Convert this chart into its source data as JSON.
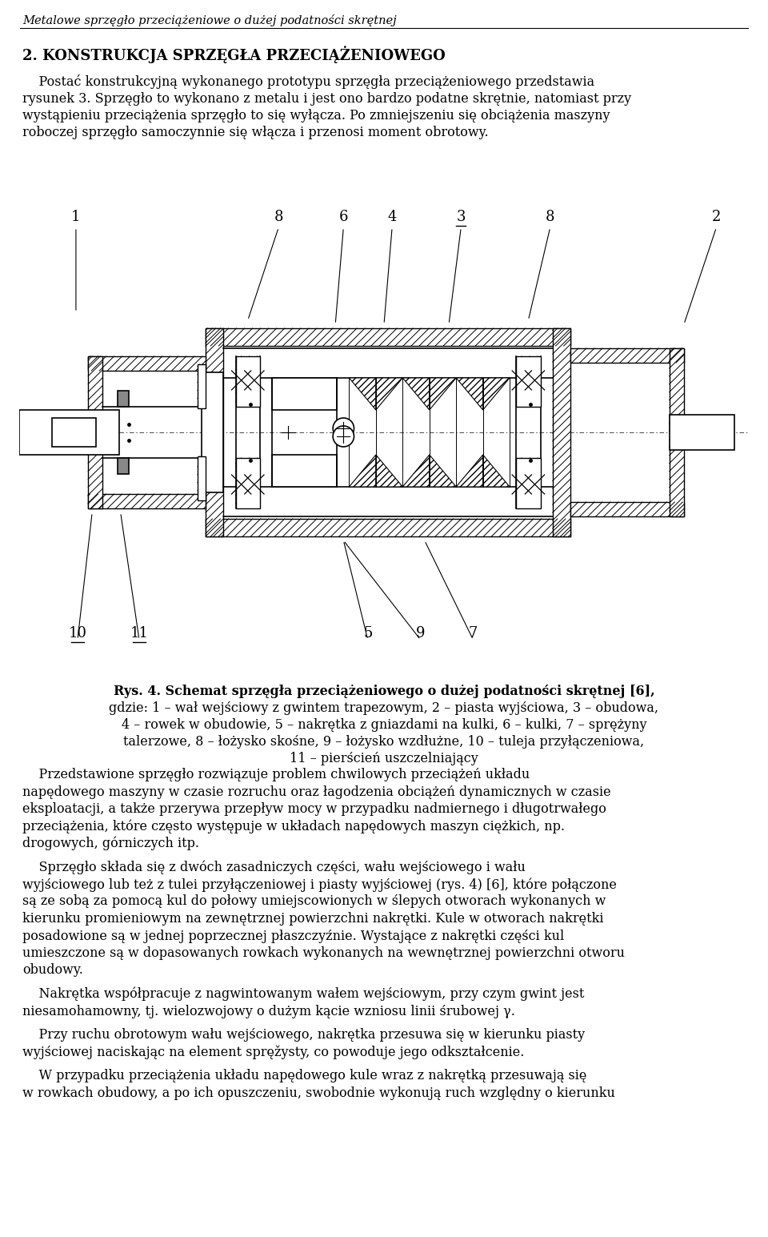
{
  "header": "Metalowe sprzęgło przeciążeniowe o dużej podatności skrętnej",
  "section_title": "2. KONSTRUKCJA SPRZĘGŁA PRZECIĄŻENIOWEGO",
  "p1_lines": [
    "    Postać konstrukcyjną wykonanego prototypu sprzęgła przeciążeniowego przedstawia",
    "rysunek 3. Sprzęgło to wykonano z metalu i jest ono bardzo podatne skrętnie, natomiast przy",
    "wystąpieniu przeciążenia sprzęgło to się wyłącza. Po zmniejszeniu się obciążenia maszyny",
    "roboczej sprzęgło samoczynnie się włącza i przenosi moment obrotowy."
  ],
  "fig_caption_bold": "Rys. 4. Schemat sprzęgła przeciążeniowego o dużej podatności skrętnej [6],",
  "fig_caption_lines": [
    "gdzie: 1 – wał wejściowy z gwintem trapezowym, 2 – piasta wyjściowa, 3 – obudowa,",
    "4 – rowek w obudowie, 5 – nakrętka z gniazdami na kulki, 6 – kulki, 7 – sprężyny",
    "talerzowe, 8 – łożysko skośne, 9 – łożysko wzdłużne, 10 – tuleja przyłączeniowa,",
    "11 – pierścień uszczelniający"
  ],
  "paragraphs": [
    [
      "    Przedstawione sprzęgło rozwiązuje problem chwilowych przeciążeń układu",
      "napędowego maszyny w czasie rozruchu oraz łagodzenia obciążeń dynamicznych w czasie",
      "eksploatacji, a także przerywa przepływ mocy w przypadku nadmiernego i długotrwałego",
      "przeciążenia, które często występuje w układach napędowych maszyn ciężkich, np.",
      "drogowych, górniczych itp."
    ],
    [
      "    Sprzęgło składa się z dwóch zasadniczych części, wału wejściowego i wału",
      "wyjściowego lub też z tulei przyłączeniowej i piasty wyjściowej (rys. 4) [6], które połączone",
      "są ze sobą za pomocą kul do połowy umiejscowionych w ślepych otworach wykonanych w",
      "kierunku promieniowym na zewnętrznej powierzchni nakrętki. Kule w otworach nakrętki",
      "posadowione są w jednej poprzecznej płaszczyźnie. Wystające z nakrętki części kul",
      "umieszczone są w dopasowanych rowkach wykonanych na wewnętrznej powierzchni otworu",
      "obudowy."
    ],
    [
      "    Nakrętka współpracuje z nagwintowanym wałem wejściowym, przy czym gwint jest",
      "niesamohamowny, tj. wielozwojowy o dużym kącie wzniosu linii śrubowej γ."
    ],
    [
      "    Przy ruchu obrotowym wału wejściowego, nakrętka przesuwa się w kierunku piasty",
      "wyjściowej naciskając na element spręžysty, co powoduje jego odkształcenie."
    ],
    [
      "    W przypadku przeciążenia układu napędowego kule wraz z nakrętką przesuwają się",
      "w rowkach obudowy, a po ich opuszczeniu, swobodnie wykonują ruch względny o kierunku"
    ]
  ],
  "bg_color": "#ffffff"
}
